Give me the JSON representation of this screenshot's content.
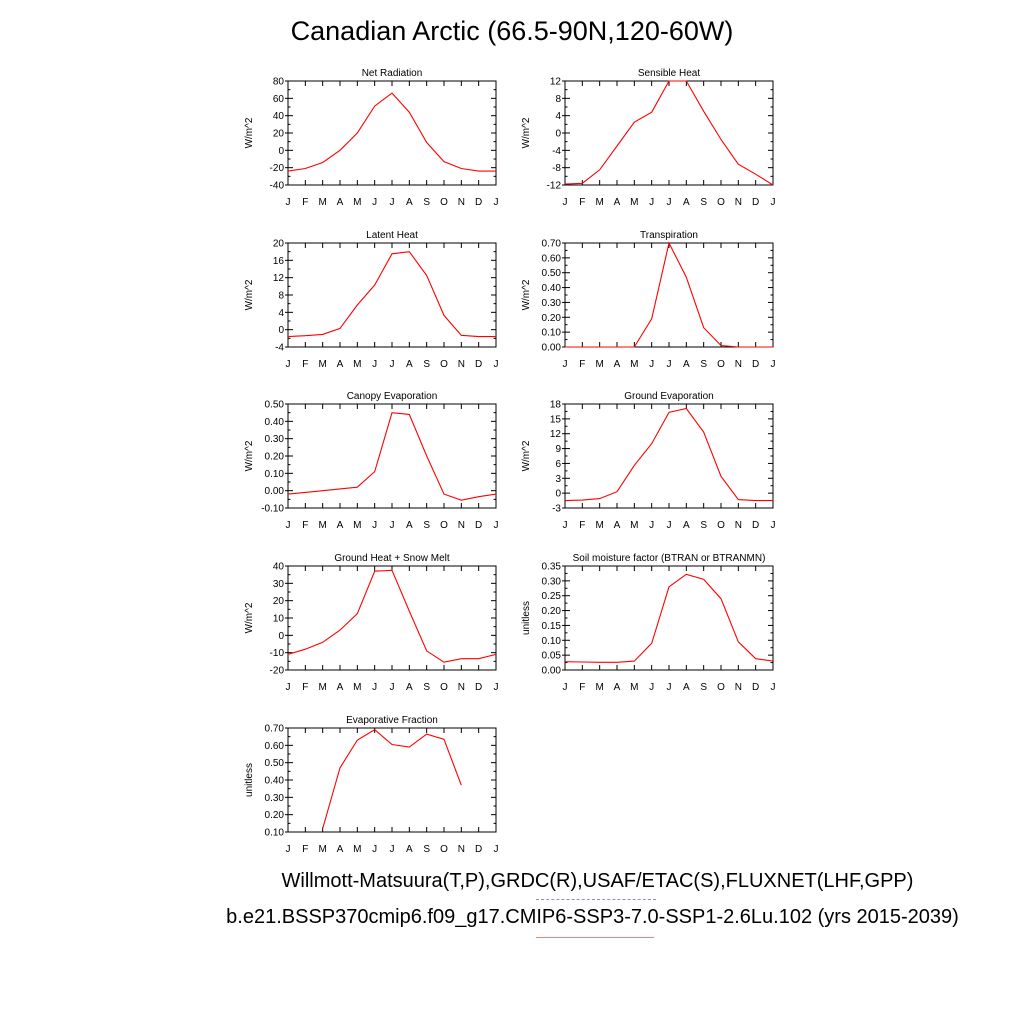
{
  "title": "Canadian Arctic (66.5-90N,120-60W)",
  "footer": {
    "line1": "Willmott-Matsuura(T,P),GRDC(R),USAF/ETAC(S),FLUXNET(LHF,GPP)",
    "line2": "b.e21.BSSP370cmip6.f09_g17.CMIP6-SSP3-7.0-SSP1-2.6Lu.102 (yrs 2015-2039)"
  },
  "colors": {
    "series": "#ff0000",
    "legend_dash": "#8a8ae6",
    "legend_line": "#f08080"
  },
  "months": [
    "J",
    "F",
    "M",
    "A",
    "M",
    "J",
    "J",
    "A",
    "S",
    "O",
    "N",
    "D",
    "J"
  ],
  "chart_data": [
    {
      "type": "line",
      "title": "Net Radiation",
      "ylabel": "W/m^2",
      "ylim": [
        -40,
        80
      ],
      "yticks": [
        -40,
        -20,
        0,
        20,
        40,
        60,
        80
      ],
      "ytick_labels": [
        "-40",
        "-20",
        "0",
        "20",
        "40",
        "60",
        "80"
      ],
      "values": [
        -24,
        -21,
        -14,
        0,
        20,
        51,
        66,
        44,
        9,
        -13,
        -21,
        -24,
        -24
      ]
    },
    {
      "type": "line",
      "title": "Sensible Heat",
      "ylabel": "W/m^2",
      "ylim": [
        -12,
        12
      ],
      "yticks": [
        -12,
        -8,
        -4,
        0,
        4,
        8,
        12
      ],
      "ytick_labels": [
        "-12",
        "-8",
        "-4",
        "0",
        "4",
        "8",
        "12"
      ],
      "values": [
        -11.8,
        -11.6,
        -8.5,
        -3,
        2.5,
        4.8,
        12,
        12,
        5,
        -1.5,
        -7.2,
        -9.5,
        -12
      ]
    },
    {
      "type": "line",
      "title": "Latent Heat",
      "ylabel": "W/m^2",
      "ylim": [
        -4,
        20
      ],
      "yticks": [
        -4,
        0,
        4,
        8,
        12,
        16,
        20
      ],
      "ytick_labels": [
        "-4",
        "0",
        "4",
        "8",
        "12",
        "16",
        "20"
      ],
      "values": [
        -1.6,
        -1.4,
        -1.1,
        0.3,
        5.7,
        10.3,
        17.5,
        18,
        12.5,
        3.3,
        -1.3,
        -1.6,
        -1.6
      ]
    },
    {
      "type": "line",
      "title": "Transpiration",
      "ylabel": "W/m^2",
      "ylim": [
        0,
        0.7
      ],
      "yticks": [
        0,
        0.1,
        0.2,
        0.3,
        0.4,
        0.5,
        0.6,
        0.7
      ],
      "ytick_labels": [
        "0.00",
        "0.10",
        "0.20",
        "0.30",
        "0.40",
        "0.50",
        "0.60",
        "0.70"
      ],
      "values": [
        0,
        0,
        0,
        0,
        0,
        0.19,
        0.7,
        0.47,
        0.13,
        0.01,
        0,
        0,
        0
      ]
    },
    {
      "type": "line",
      "title": "Canopy Evaporation",
      "ylabel": "W/m^2",
      "ylim": [
        -0.1,
        0.5
      ],
      "yticks": [
        -0.1,
        0,
        0.1,
        0.2,
        0.3,
        0.4,
        0.5
      ],
      "ytick_labels": [
        "-0.10",
        "0.00",
        "0.10",
        "0.20",
        "0.30",
        "0.40",
        "0.50"
      ],
      "values": [
        -0.02,
        -0.01,
        0,
        0.01,
        0.02,
        0.11,
        0.45,
        0.44,
        0.2,
        -0.02,
        -0.055,
        -0.035,
        -0.02
      ]
    },
    {
      "type": "line",
      "title": "Ground Evaporation",
      "ylabel": "W/m^2",
      "ylim": [
        -3,
        18
      ],
      "yticks": [
        -3,
        0,
        3,
        6,
        9,
        12,
        15,
        18
      ],
      "ytick_labels": [
        "-3",
        "0",
        "3",
        "6",
        "9",
        "12",
        "15",
        "18"
      ],
      "values": [
        -1.5,
        -1.4,
        -1.1,
        0.3,
        5.6,
        10,
        16.3,
        17.1,
        12.3,
        3.4,
        -1.3,
        -1.5,
        -1.5
      ]
    },
    {
      "type": "line",
      "title": "Ground Heat + Snow Melt",
      "ylabel": "W/m^2",
      "ylim": [
        -20,
        40
      ],
      "yticks": [
        -20,
        -10,
        0,
        10,
        20,
        30,
        40
      ],
      "ytick_labels": [
        "-20",
        "-10",
        "0",
        "10",
        "20",
        "30",
        "40"
      ],
      "values": [
        -11,
        -8,
        -4,
        3,
        12.5,
        37,
        37.5,
        14,
        -9,
        -15.5,
        -13.5,
        -13.5,
        -11
      ]
    },
    {
      "type": "line",
      "title": "Soil moisture factor (BTRAN or BTRANMN)",
      "ylabel": "unitless",
      "ylim": [
        0,
        0.35
      ],
      "yticks": [
        0,
        0.05,
        0.1,
        0.15,
        0.2,
        0.25,
        0.3,
        0.35
      ],
      "ytick_labels": [
        "0.00",
        "0.05",
        "0.10",
        "0.15",
        "0.20",
        "0.25",
        "0.30",
        "0.35"
      ],
      "values": [
        0.028,
        0.027,
        0.026,
        0.026,
        0.03,
        0.09,
        0.28,
        0.322,
        0.305,
        0.24,
        0.095,
        0.038,
        0.03
      ]
    },
    {
      "type": "line",
      "title": "Evaporative Fraction",
      "ylabel": "unitless",
      "ylim": [
        0.1,
        0.7
      ],
      "yticks": [
        0.1,
        0.2,
        0.3,
        0.4,
        0.5,
        0.6,
        0.7
      ],
      "ytick_labels": [
        "0.10",
        "0.20",
        "0.30",
        "0.40",
        "0.50",
        "0.60",
        "0.70"
      ],
      "values": [
        null,
        null,
        0.12,
        0.47,
        0.63,
        0.69,
        0.605,
        0.59,
        0.665,
        0.635,
        0.37,
        null,
        null
      ]
    }
  ]
}
